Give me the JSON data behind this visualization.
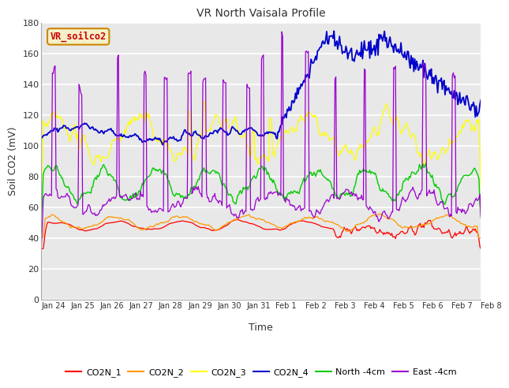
{
  "title": "VR North Vaisala Profile",
  "xlabel": "Time",
  "ylabel": "Soil CO2 (mV)",
  "ylim": [
    0,
    180
  ],
  "yticks": [
    0,
    20,
    40,
    60,
    80,
    100,
    120,
    140,
    160,
    180
  ],
  "annotation": "VR_soilco2",
  "annotation_color": "#cc0000",
  "annotation_bg": "#f5f0c8",
  "annotation_border": "#cc8800",
  "colors": {
    "CO2N_1": "#ff0000",
    "CO2N_2": "#ff9900",
    "CO2N_3": "#ffff00",
    "CO2N_4": "#0000cc",
    "North_4cm": "#00cc00",
    "East_4cm": "#9900cc"
  },
  "fig_bg": "#ffffff",
  "plot_bg": "#e8e8e8",
  "grid_color": "#ffffff",
  "n_points": 480,
  "seed": 42,
  "tick_labels": [
    "Jan 24",
    "Jan 25",
    "Jan 26",
    "Jan 27",
    "Jan 28",
    "Jan 29",
    "Jan 30",
    "Jan 31",
    "Feb 1",
    "Feb 2",
    "Feb 3",
    "Feb 4",
    "Feb 5",
    "Feb 6",
    "Feb 7",
    "Feb 8"
  ],
  "legend_labels": [
    "CO2N_1",
    "CO2N_2",
    "CO2N_3",
    "CO2N_4",
    "North -4cm",
    "East -4cm"
  ]
}
